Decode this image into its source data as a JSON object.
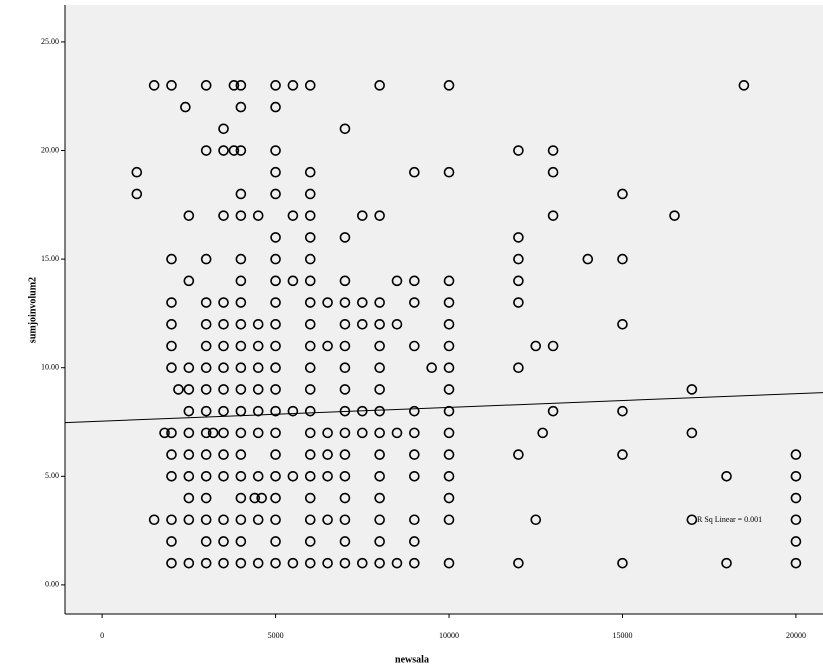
{
  "chart_data": {
    "type": "scatter",
    "x_label": "newsala",
    "y_label": "sumjoinvolum2",
    "annotation": "R Sq Linear = 0.001",
    "xlim": [
      -1070,
      20780
    ],
    "ylim": [
      -1.34,
      26.7
    ],
    "xticks": [
      0,
      5000,
      10000,
      15000,
      20000
    ],
    "yticks": [
      {
        "value": 0,
        "label": "0.00"
      },
      {
        "value": 5,
        "label": "5.00"
      },
      {
        "value": 10,
        "label": "10.00"
      },
      {
        "value": 15,
        "label": "15.00"
      },
      {
        "value": 20,
        "label": "20.00"
      },
      {
        "value": 25,
        "label": "25.00"
      }
    ],
    "fit": {
      "intercept": 7.54,
      "slope": 6.32e-05
    },
    "marker_color": "#000000",
    "background": "#f0f0f0",
    "x": [
      1500,
      2000,
      3000,
      3800,
      4000,
      5000,
      5500,
      6000,
      8000,
      10000,
      18500,
      2400,
      4000,
      5000,
      3500,
      7000,
      3000,
      3500,
      3800,
      4000,
      5000,
      12000,
      13000,
      1000,
      5000,
      6000,
      9000,
      10000,
      13000,
      1000,
      4000,
      5000,
      6000,
      15000,
      2500,
      3500,
      4000,
      4500,
      5500,
      6000,
      7500,
      8000,
      13000,
      16500,
      5000,
      6000,
      7000,
      12000,
      2000,
      3000,
      4000,
      5000,
      6000,
      12000,
      14000,
      15000,
      2500,
      4000,
      5000,
      5500,
      6000,
      7000,
      8500,
      9000,
      10000,
      12000,
      2000,
      3000,
      3500,
      4000,
      5000,
      6000,
      6500,
      7000,
      7500,
      8000,
      9000,
      10000,
      12000,
      2000,
      3000,
      3500,
      4000,
      4500,
      5000,
      6000,
      7000,
      7500,
      8000,
      8500,
      10000,
      15000,
      2000,
      3000,
      3500,
      4000,
      4500,
      5000,
      6000,
      6500,
      7000,
      8000,
      9000,
      10000,
      12500,
      13000,
      2000,
      2500,
      3000,
      3500,
      4000,
      4500,
      5000,
      6000,
      7000,
      8000,
      9500,
      10000,
      12000,
      2200,
      2500,
      3000,
      3500,
      4000,
      4500,
      5000,
      6000,
      7000,
      8000,
      10000,
      17000,
      2500,
      3000,
      3500,
      4000,
      4500,
      5000,
      5500,
      6000,
      7000,
      7500,
      8000,
      9000,
      10000,
      13000,
      15000,
      1800,
      2000,
      2500,
      3000,
      3200,
      3500,
      4000,
      4500,
      5000,
      6000,
      6500,
      7000,
      7500,
      8000,
      8500,
      9000,
      10000,
      12700,
      17000,
      2000,
      2500,
      3000,
      3500,
      4000,
      5000,
      6000,
      6500,
      7000,
      8000,
      9000,
      10000,
      12000,
      15000,
      20000,
      2000,
      2500,
      3000,
      3500,
      4000,
      4500,
      5000,
      5500,
      6000,
      6500,
      7000,
      8000,
      9000,
      10000,
      18000,
      20000,
      2500,
      3000,
      4000,
      4400,
      4600,
      5000,
      6000,
      7000,
      8000,
      10000,
      20000,
      1500,
      2000,
      2500,
      3000,
      3500,
      4000,
      4500,
      5000,
      6000,
      6500,
      7000,
      8000,
      9000,
      10000,
      12500,
      17000,
      20000,
      2000,
      3000,
      3500,
      4000,
      5000,
      6000,
      7000,
      8000,
      9000,
      20000,
      2000,
      2500,
      3000,
      3500,
      4000,
      4500,
      5000,
      5500,
      6000,
      6500,
      7000,
      7500,
      8000,
      8500,
      9000,
      10000,
      12000,
      15000,
      18000,
      20000
    ],
    "values": [
      23,
      23,
      23,
      23,
      23,
      23,
      23,
      23,
      23,
      23,
      23,
      22,
      22,
      22,
      21,
      21,
      20,
      20,
      20,
      20,
      20,
      20,
      20,
      19,
      19,
      19,
      19,
      19,
      19,
      18,
      18,
      18,
      18,
      18,
      17,
      17,
      17,
      17,
      17,
      17,
      17,
      17,
      17,
      17,
      16,
      16,
      16,
      16,
      15,
      15,
      15,
      15,
      15,
      15,
      15,
      15,
      14,
      14,
      14,
      14,
      14,
      14,
      14,
      14,
      14,
      14,
      13,
      13,
      13,
      13,
      13,
      13,
      13,
      13,
      13,
      13,
      13,
      13,
      13,
      12,
      12,
      12,
      12,
      12,
      12,
      12,
      12,
      12,
      12,
      12,
      12,
      12,
      11,
      11,
      11,
      11,
      11,
      11,
      11,
      11,
      11,
      11,
      11,
      11,
      11,
      11,
      10,
      10,
      10,
      10,
      10,
      10,
      10,
      10,
      10,
      10,
      10,
      10,
      10,
      9,
      9,
      9,
      9,
      9,
      9,
      9,
      9,
      9,
      9,
      9,
      9,
      8,
      8,
      8,
      8,
      8,
      8,
      8,
      8,
      8,
      8,
      8,
      8,
      8,
      8,
      8,
      7,
      7,
      7,
      7,
      7,
      7,
      7,
      7,
      7,
      7,
      7,
      7,
      7,
      7,
      7,
      7,
      7,
      7,
      7,
      6,
      6,
      6,
      6,
      6,
      6,
      6,
      6,
      6,
      6,
      6,
      6,
      6,
      6,
      6,
      5,
      5,
      5,
      5,
      5,
      5,
      5,
      5,
      5,
      5,
      5,
      5,
      5,
      5,
      5,
      5,
      4,
      4,
      4,
      4,
      4,
      4,
      4,
      4,
      4,
      4,
      4,
      3,
      3,
      3,
      3,
      3,
      3,
      3,
      3,
      3,
      3,
      3,
      3,
      3,
      3,
      3,
      3,
      3,
      2,
      2,
      2,
      2,
      2,
      2,
      2,
      2,
      2,
      2,
      1,
      1,
      1,
      1,
      1,
      1,
      1,
      1,
      1,
      1,
      1,
      1,
      1,
      1,
      1,
      1,
      1,
      1,
      1,
      1
    ]
  }
}
